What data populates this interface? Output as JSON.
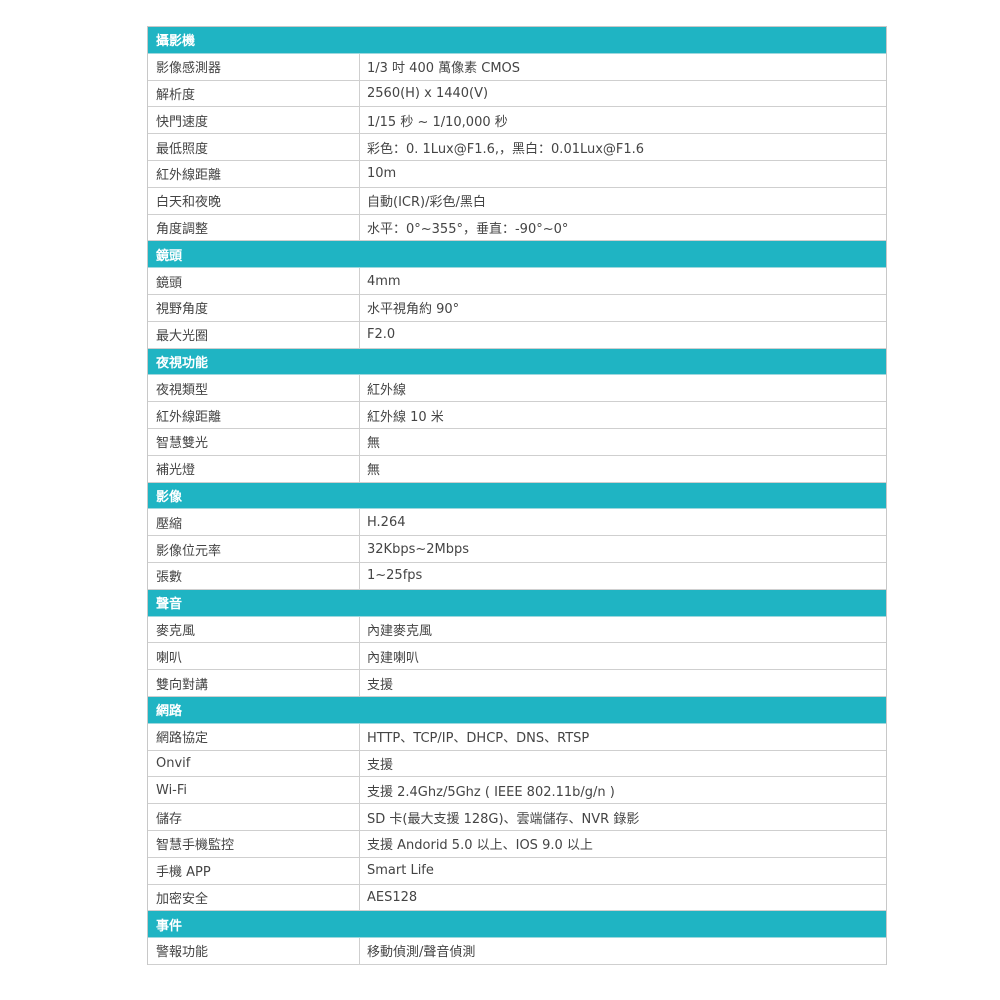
{
  "sections": [
    {
      "title": "攝影機",
      "rows": [
        [
          "影像感測器",
          "1/3 吋 400 萬像素 CMOS"
        ],
        [
          "解析度",
          "2560(H) x 1440(V)"
        ],
        [
          "快門速度",
          "1/15 秒 ~ 1/10,000 秒"
        ],
        [
          "最低照度",
          "彩色：0. 1Lux@F1.6,，黑白：0.01Lux@F1.6"
        ],
        [
          "紅外線距離",
          "10m"
        ],
        [
          "白天和夜晚",
          "自動(ICR)/彩色/黑白"
        ],
        [
          "角度調整",
          "水平：0°~355°，垂直：-90°~0°"
        ]
      ]
    },
    {
      "title": "鏡頭",
      "rows": [
        [
          "鏡頭",
          "4mm"
        ],
        [
          "視野角度",
          "水平視角約  90°"
        ],
        [
          "最大光圈",
          "F2.0"
        ]
      ]
    },
    {
      "title": "夜視功能",
      "rows": [
        [
          "夜視類型",
          "紅外線"
        ],
        [
          "紅外線距離",
          "紅外線 10 米"
        ],
        [
          "智慧雙光",
          "無"
        ],
        [
          "補光燈",
          "無"
        ]
      ]
    },
    {
      "title": "影像",
      "rows": [
        [
          "壓縮",
          "H.264"
        ],
        [
          "影像位元率",
          "32Kbps~2Mbps"
        ],
        [
          "張數",
          "1~25fps"
        ]
      ]
    },
    {
      "title": "聲音",
      "rows": [
        [
          "麥克風",
          "內建麥克風"
        ],
        [
          "喇叭",
          "內建喇叭"
        ],
        [
          "雙向對講",
          "支援"
        ]
      ]
    },
    {
      "title": "網路",
      "rows": [
        [
          "網路協定",
          "HTTP、TCP/IP、DHCP、DNS、RTSP"
        ],
        [
          "Onvif",
          "支援"
        ],
        [
          "Wi-Fi",
          "支援 2.4Ghz/5Ghz ( IEEE 802.11b/g/n )"
        ],
        [
          "儲存",
          "SD 卡(最大支援 128G)、雲端儲存、NVR 錄影"
        ],
        [
          "智慧手機監控",
          "支援 Andorid 5.0 以上、IOS 9.0 以上"
        ],
        [
          "手機 APP",
          "Smart Life"
        ],
        [
          "加密安全",
          "AES128"
        ]
      ]
    },
    {
      "title": "事件",
      "rows": [
        [
          "警報功能",
          "移動偵測/聲音偵測"
        ]
      ]
    }
  ],
  "colors": {
    "section_header": "#1fb4c3",
    "border": "#cfcfcf",
    "text": "#444444"
  }
}
